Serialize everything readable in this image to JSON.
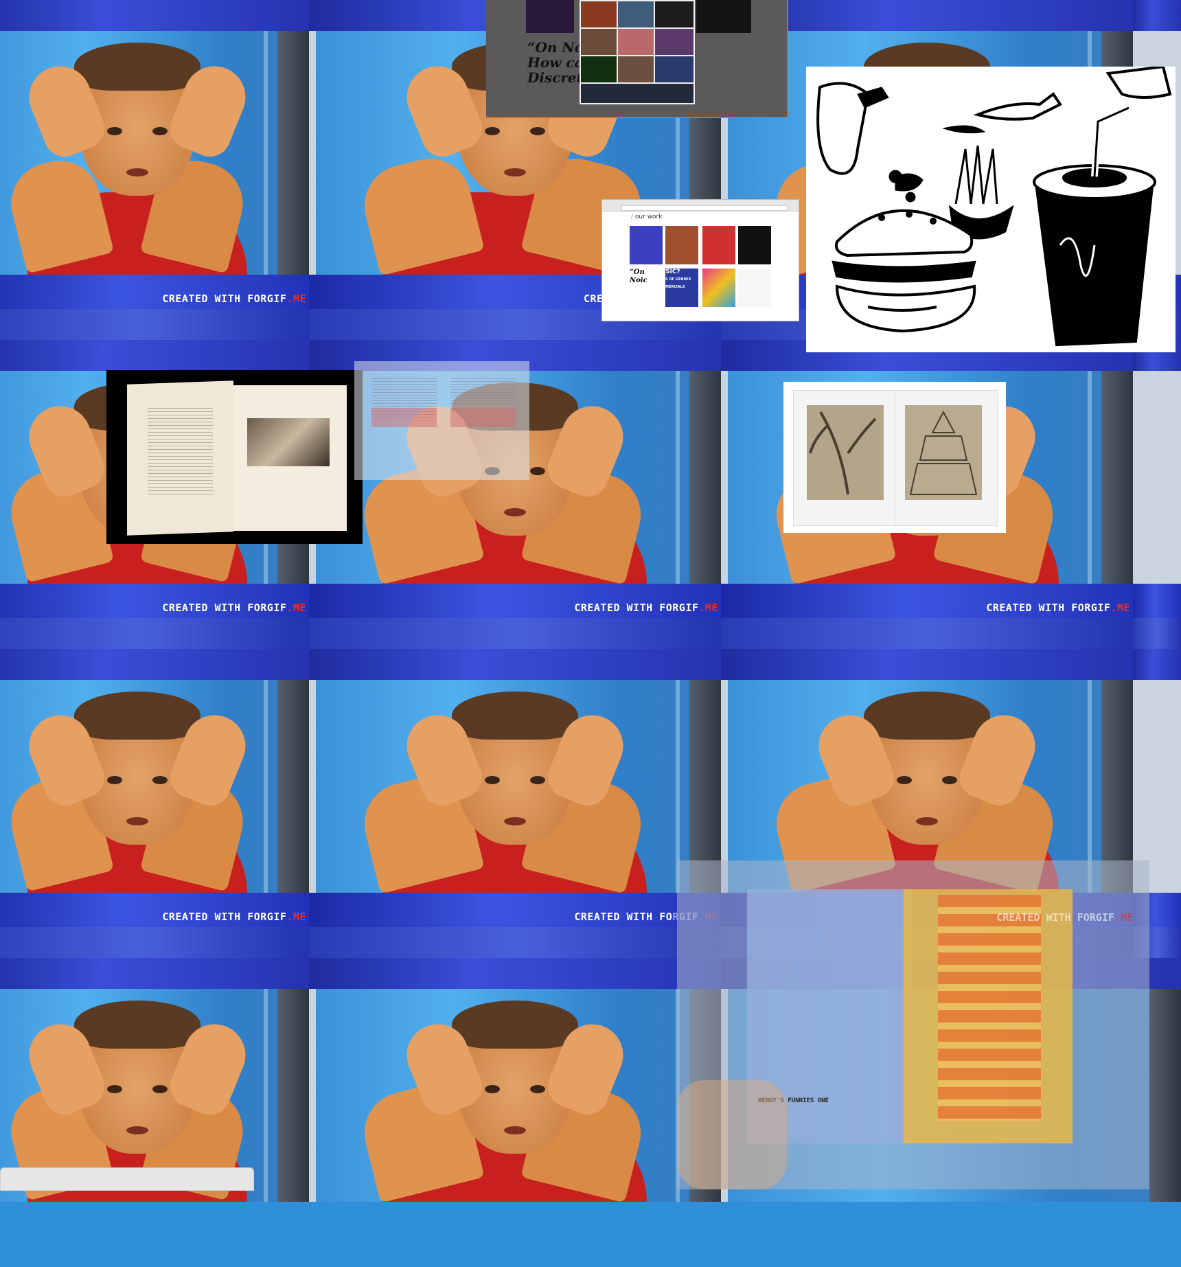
{
  "watermark": {
    "prefix": "CREATED WITH FORGIF",
    "suffix": ".ME",
    "clipped_prefix": "CRE",
    "partial_prefix": "CREATED WITH FO",
    "partial_rest": "RGIF",
    "accent_color": "#e03030"
  },
  "overlays": {
    "dark_poster": {
      "script_line_1": "“On Noic",
      "script_line_2": "How can ",
      "script_line_3": "Discretion"
    },
    "browser": {
      "section_label": "our work",
      "slash": "/",
      "thumb_text_1": "“On Noic",
      "thumb_text_2": "SIC?",
      "thumb_text_3": "S OF GENRES",
      "thumb_text_4": "MERCIALS"
    },
    "zine": {
      "caption": "BENNY'S FUNNIES ONE"
    }
  },
  "icons": [
    "burger-illustration",
    "soda-cup-illustration",
    "fries-illustration"
  ],
  "colors": {
    "sky_blue": "#52b0ee",
    "shirt_red": "#c8201e",
    "banner_blue": "#3c55e0"
  }
}
